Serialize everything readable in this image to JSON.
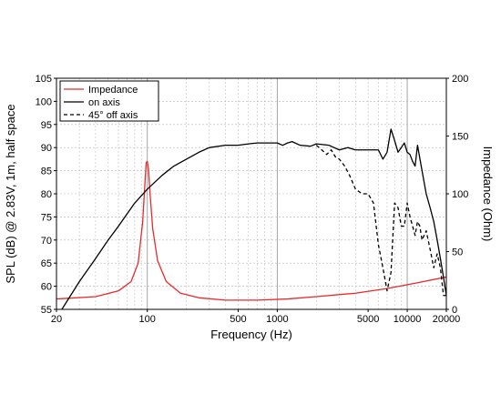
{
  "chart_data": {
    "type": "line",
    "title": "",
    "xlabel": "Frequency (Hz)",
    "ylabel": "SPL (dB) @ 2.83V, 1m, half space",
    "y2label": "Impedance (Ohm)",
    "xscale": "log",
    "xlim": [
      20,
      20000
    ],
    "ylim": [
      55,
      105
    ],
    "y2lim": [
      0,
      200
    ],
    "grid": true,
    "legend_position": "top-left",
    "x_tick_labels": [
      {
        "value": 20,
        "label": "20"
      },
      {
        "value": 100,
        "label": "100"
      },
      {
        "value": 500,
        "label": "500"
      },
      {
        "value": 1000,
        "label": "1000"
      },
      {
        "value": 5000,
        "label": "5000"
      },
      {
        "value": 10000,
        "label": "10000"
      },
      {
        "value": 20000,
        "label": "20000"
      }
    ],
    "y_ticks": [
      55,
      60,
      65,
      70,
      75,
      80,
      85,
      90,
      95,
      100,
      105
    ],
    "y2_ticks": [
      0,
      50,
      100,
      150,
      200
    ],
    "series": [
      {
        "name": "Impedance",
        "axis": "right",
        "color": "#e8292b",
        "dash": "solid",
        "x": [
          20,
          40,
          60,
          75,
          85,
          92,
          96,
          98,
          100,
          102,
          105,
          110,
          120,
          140,
          180,
          250,
          400,
          700,
          1200,
          2000,
          4000,
          7000,
          12000,
          20000
        ],
        "y": [
          9,
          11,
          16,
          24,
          40,
          75,
          110,
          127,
          128,
          122,
          100,
          70,
          42,
          24,
          14,
          10,
          8,
          8,
          9,
          11,
          14,
          18,
          23,
          28
        ]
      },
      {
        "name": "on axis",
        "axis": "left",
        "color": "#000000",
        "dash": "solid",
        "x": [
          22,
          30,
          40,
          50,
          60,
          80,
          100,
          130,
          160,
          200,
          250,
          300,
          400,
          500,
          600,
          700,
          800,
          1000,
          1100,
          1200,
          1300,
          1500,
          1800,
          2000,
          2500,
          3000,
          3500,
          4000,
          5000,
          6000,
          6500,
          7000,
          7500,
          8000,
          8500,
          9000,
          9500,
          10000,
          10500,
          11000,
          11500,
          12000,
          13000,
          14000,
          15000,
          16000,
          17000,
          18000,
          19000,
          20000
        ],
        "y": [
          55,
          61,
          66,
          70,
          73,
          78,
          81,
          84,
          86,
          87.5,
          89,
          90,
          90.5,
          90.5,
          90.8,
          91,
          91,
          91,
          90.5,
          91,
          91.3,
          90.5,
          90.3,
          90.8,
          90.5,
          89.5,
          90,
          89.5,
          89.5,
          89.5,
          87.5,
          89,
          94,
          91.5,
          89,
          90,
          91,
          89,
          88.5,
          87,
          86,
          90.5,
          85,
          80,
          77,
          74,
          70,
          66,
          62,
          58
        ]
      },
      {
        "name": "45° off axis",
        "axis": "left",
        "color": "#000000",
        "dash": "dashed",
        "x": [
          2000,
          2200,
          2400,
          2600,
          2800,
          3000,
          3300,
          3600,
          4000,
          4500,
          5000,
          5500,
          6000,
          6500,
          7000,
          7500,
          8000,
          8500,
          9000,
          9500,
          10000,
          10500,
          11000,
          11500,
          12000,
          12500,
          13000,
          14000,
          15000,
          16000,
          17000,
          18000,
          19000,
          20000
        ],
        "y": [
          90.5,
          89.5,
          88.5,
          89.5,
          88,
          87.5,
          86,
          84,
          81,
          80,
          80,
          78,
          69,
          64,
          59,
          63,
          78,
          77,
          73,
          73,
          78,
          75,
          73,
          71,
          74,
          73,
          70,
          72,
          68,
          64,
          67,
          64,
          58,
          58
        ]
      }
    ]
  }
}
